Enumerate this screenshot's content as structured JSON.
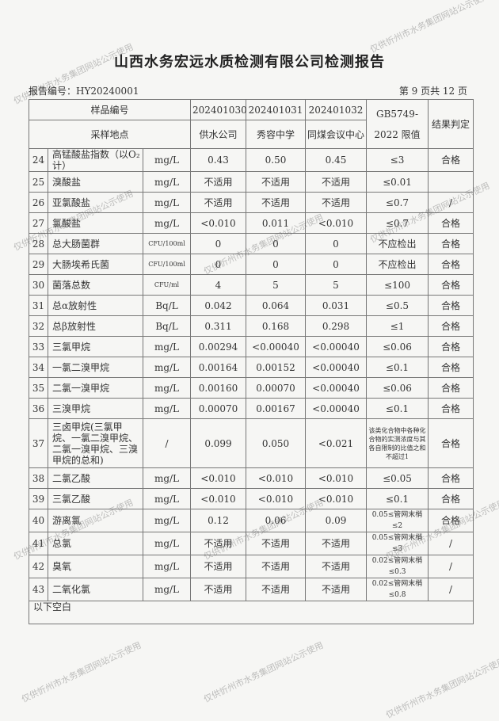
{
  "title": "山西水务宏远水质检测有限公司检测报告",
  "report_no": "报告编号：HY20240001",
  "page": "第 9 页共 12 页",
  "header": {
    "sample_no": "样品编号",
    "site": "采样地点",
    "samples": [
      "202401030",
      "202401031",
      "202401032"
    ],
    "sites": [
      "供水公司",
      "秀容中学",
      "同煤会议中心"
    ],
    "limit": "GB5749-2022 限值",
    "result": "结果判定"
  },
  "rows": [
    {
      "no": "24",
      "name": "高锰酸盐指数（以O₂计）",
      "unit": "mg/L",
      "v": [
        "0.43",
        "0.50",
        "0.45"
      ],
      "limit": "≤3",
      "res": "合格"
    },
    {
      "no": "25",
      "name": "溴酸盐",
      "unit": "mg/L",
      "v": [
        "不适用",
        "不适用",
        "不适用"
      ],
      "limit": "≤0.01",
      "res": ""
    },
    {
      "no": "26",
      "name": "亚氯酸盐",
      "unit": "mg/L",
      "v": [
        "不适用",
        "不适用",
        "不适用"
      ],
      "limit": "≤0.7",
      "res": "/"
    },
    {
      "no": "27",
      "name": "氯酸盐",
      "unit": "mg/L",
      "v": [
        "<0.010",
        "0.011",
        "<0.010"
      ],
      "limit": "≤0.7",
      "res": "合格"
    },
    {
      "no": "28",
      "name": "总大肠菌群",
      "unit": "CFU/100ml",
      "v": [
        "0",
        "0",
        "0"
      ],
      "limit": "不应检出",
      "res": "合格"
    },
    {
      "no": "29",
      "name": "大肠埃希氏菌",
      "unit": "CFU/100ml",
      "v": [
        "0",
        "0",
        "0"
      ],
      "limit": "不应检出",
      "res": "合格"
    },
    {
      "no": "30",
      "name": "菌落总数",
      "unit": "CFU/ml",
      "v": [
        "4",
        "5",
        "5"
      ],
      "limit": "≤100",
      "res": "合格"
    },
    {
      "no": "31",
      "name": "总α放射性",
      "unit": "Bq/L",
      "v": [
        "0.042",
        "0.064",
        "0.031"
      ],
      "limit": "≤0.5",
      "res": "合格"
    },
    {
      "no": "32",
      "name": "总β放射性",
      "unit": "Bq/L",
      "v": [
        "0.311",
        "0.168",
        "0.298"
      ],
      "limit": "≤1",
      "res": "合格"
    },
    {
      "no": "33",
      "name": "三氯甲烷",
      "unit": "mg/L",
      "v": [
        "0.00294",
        "<0.00040",
        "<0.00040"
      ],
      "limit": "≤0.06",
      "res": "合格"
    },
    {
      "no": "34",
      "name": "一氯二溴甲烷",
      "unit": "mg/L",
      "v": [
        "0.00164",
        "0.00152",
        "<0.00040"
      ],
      "limit": "≤0.1",
      "res": "合格"
    },
    {
      "no": "35",
      "name": "二氯一溴甲烷",
      "unit": "mg/L",
      "v": [
        "0.00160",
        "0.00070",
        "<0.00040"
      ],
      "limit": "≤0.06",
      "res": "合格"
    },
    {
      "no": "36",
      "name": "三溴甲烷",
      "unit": "mg/L",
      "v": [
        "0.00070",
        "0.00167",
        "<0.00040"
      ],
      "limit": "≤0.1",
      "res": "合格"
    },
    {
      "no": "37",
      "name": "三卤甲烷(三氯甲烷、一氯二溴甲烷、二氯一溴甲烷、三溴甲烷的总和)",
      "unit": "/",
      "v": [
        "0.099",
        "0.050",
        "<0.021"
      ],
      "limit": "该类化合物中各种化合物的实测浓度与其各自限制的比值之和不超过1",
      "res": "合格"
    },
    {
      "no": "38",
      "name": "二氯乙酸",
      "unit": "mg/L",
      "v": [
        "<0.010",
        "<0.010",
        "<0.010"
      ],
      "limit": "≤0.05",
      "res": "合格"
    },
    {
      "no": "39",
      "name": "三氯乙酸",
      "unit": "mg/L",
      "v": [
        "<0.010",
        "<0.010",
        "<0.010"
      ],
      "limit": "≤0.1",
      "res": "合格"
    },
    {
      "no": "40",
      "name": "游离氯",
      "unit": "mg/L",
      "v": [
        "0.12",
        "0.06",
        "0.09"
      ],
      "limit": "0.05≤管网末梢≤2",
      "res": "合格"
    },
    {
      "no": "41",
      "name": "总氯",
      "unit": "mg/L",
      "v": [
        "不适用",
        "不适用",
        "不适用"
      ],
      "limit": "0.05≤管网末梢≤3",
      "res": "/"
    },
    {
      "no": "42",
      "name": "臭氧",
      "unit": "mg/L",
      "v": [
        "不适用",
        "不适用",
        "不适用"
      ],
      "limit": "0.02≤管网末梢≤0.3",
      "res": "/"
    },
    {
      "no": "43",
      "name": "二氧化氯",
      "unit": "mg/L",
      "v": [
        "不适用",
        "不适用",
        "不适用"
      ],
      "limit": "0.02≤管网末梢≤0.8",
      "res": "/"
    }
  ],
  "footer": "以下空白",
  "watermark": "仅供忻州市水务集团网站公示使用"
}
